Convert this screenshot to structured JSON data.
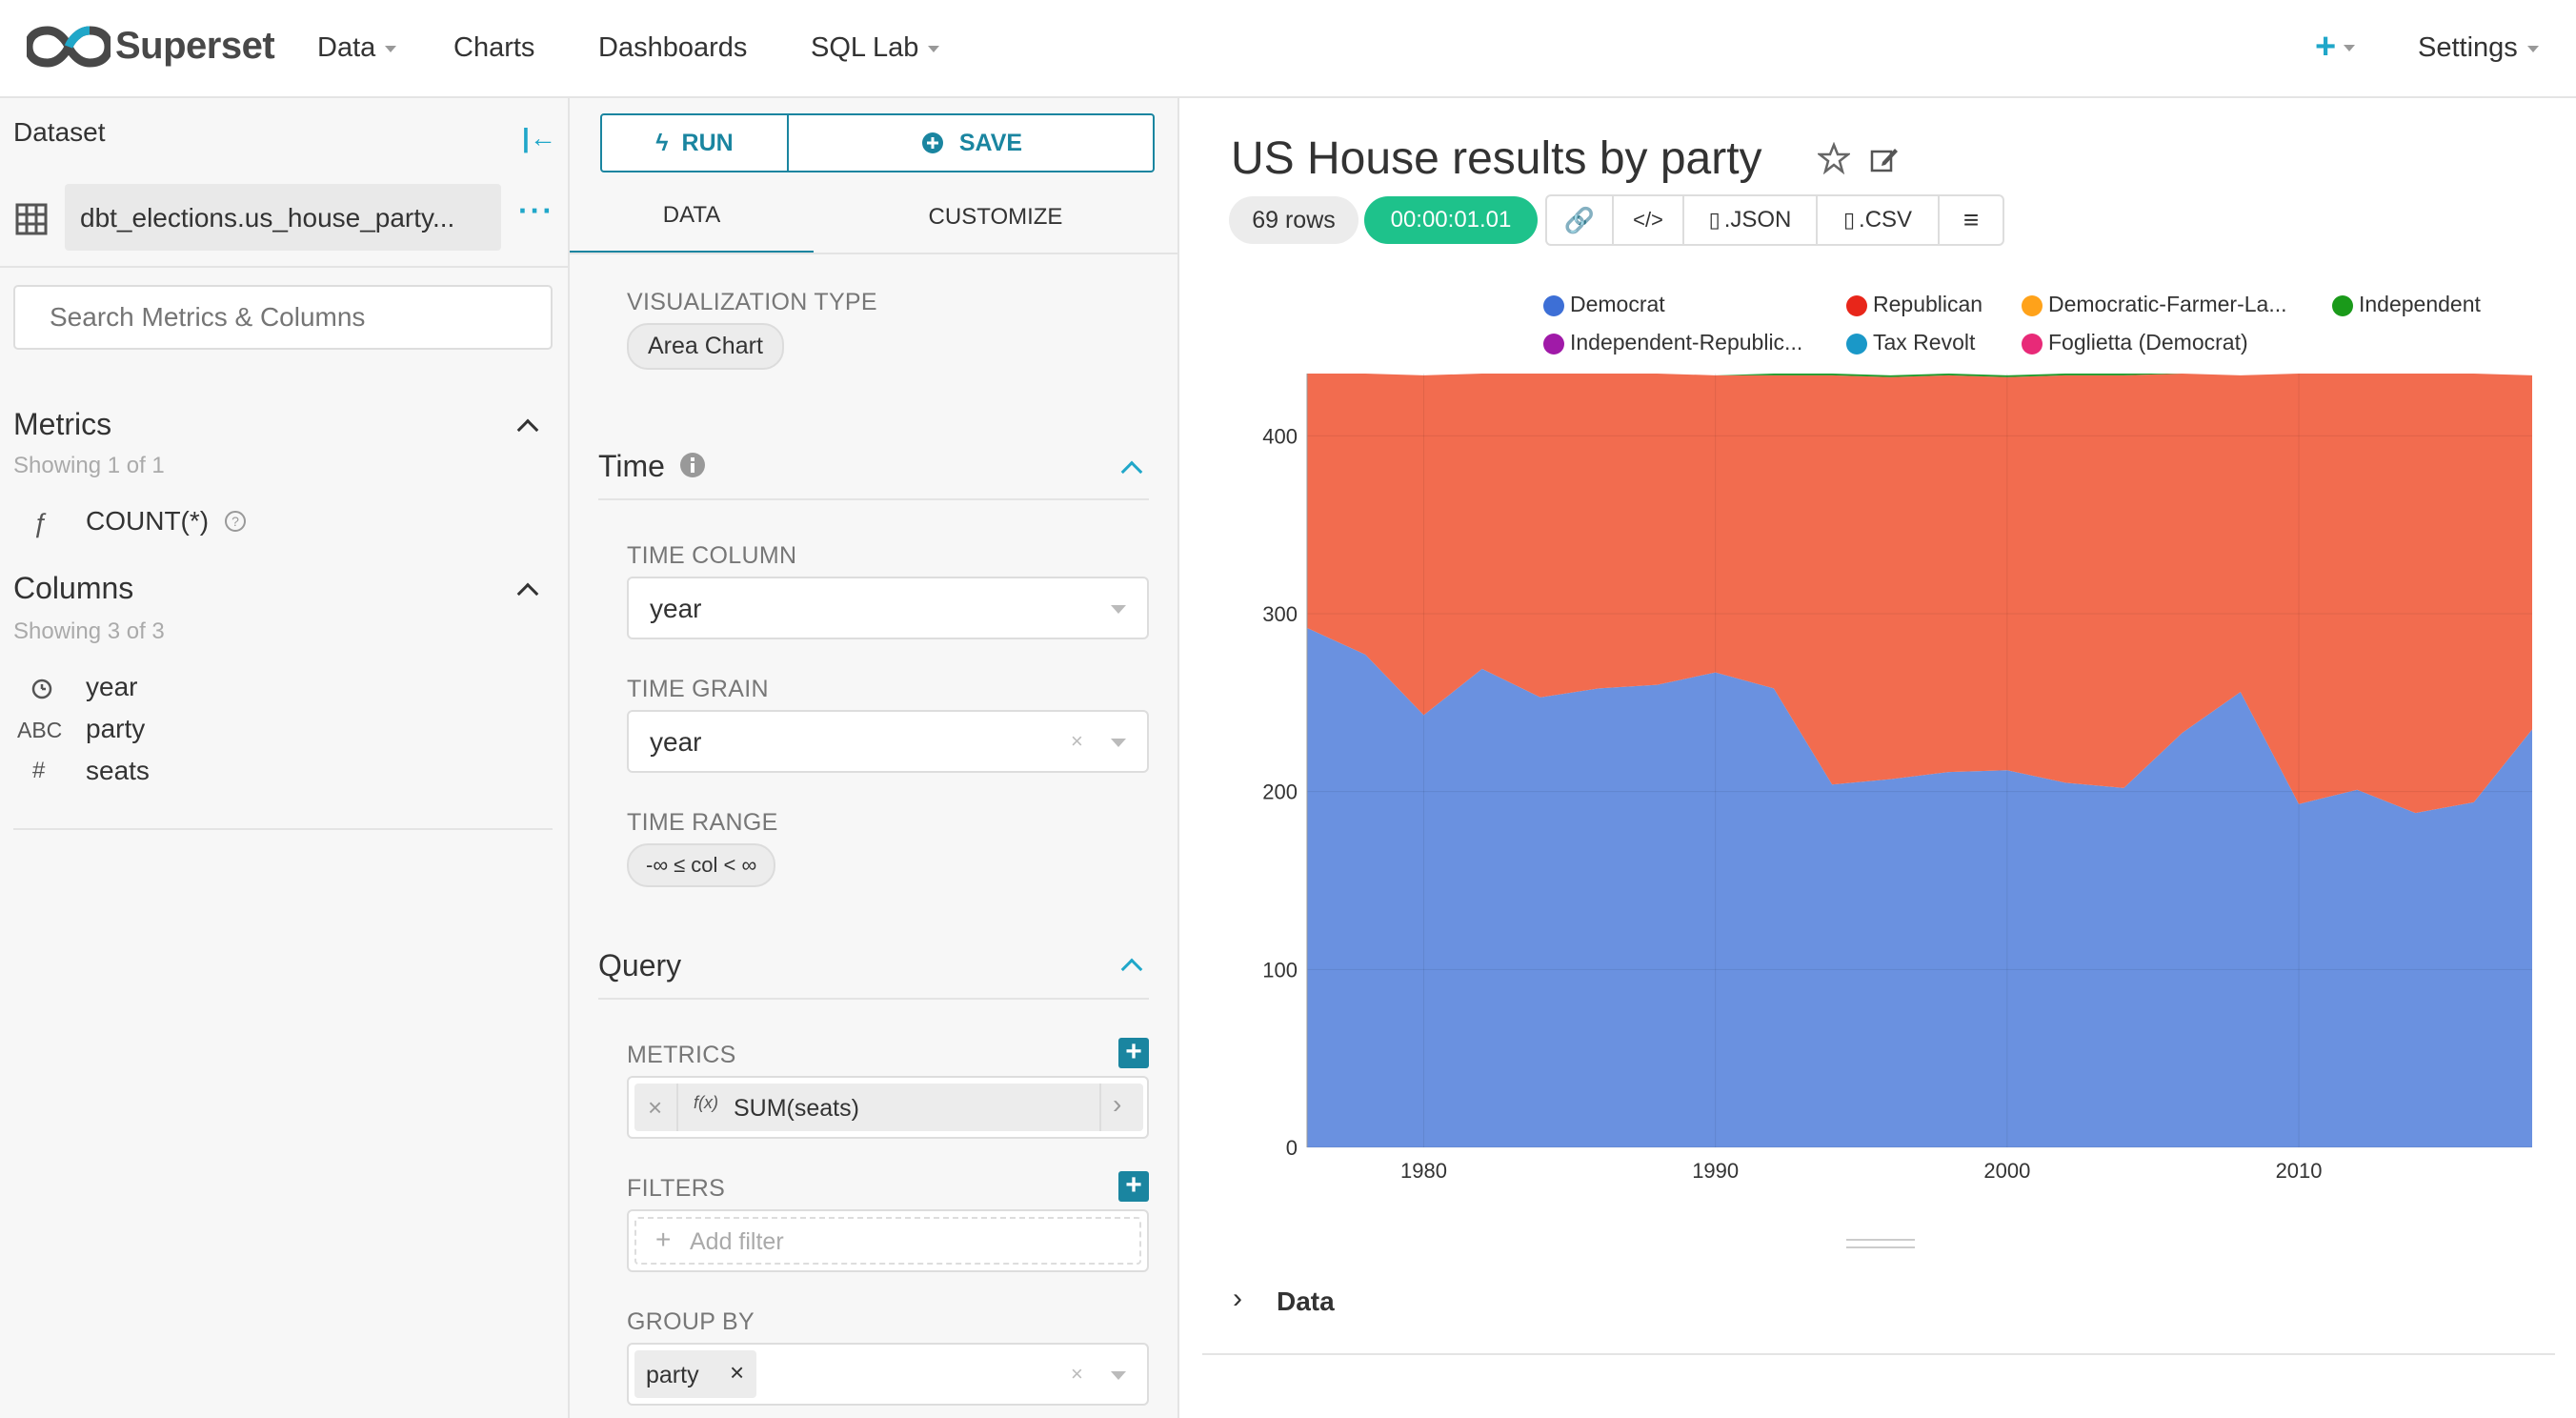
{
  "nav": {
    "brand": "Superset",
    "items": [
      "Data",
      "Charts",
      "Dashboards",
      "SQL Lab"
    ],
    "plus": "+",
    "settings": "Settings"
  },
  "dataset": {
    "header": "Dataset",
    "name": "dbt_elections.us_house_party...",
    "search_placeholder": "Search Metrics & Columns",
    "metrics_title": "Metrics",
    "metrics_showing": "Showing 1 of 1",
    "metrics": [
      {
        "icon": "ƒ",
        "name": "COUNT(*)"
      }
    ],
    "columns_title": "Columns",
    "columns_showing": "Showing 3 of 3",
    "columns": [
      {
        "icon": "clock-icon",
        "type": "",
        "name": "year"
      },
      {
        "icon": "",
        "type": "ABC",
        "name": "party"
      },
      {
        "icon": "",
        "type": "#",
        "name": "seats"
      }
    ]
  },
  "explore": {
    "run_label": "RUN",
    "save_label": "SAVE",
    "tabs": [
      "DATA",
      "CUSTOMIZE"
    ],
    "viz_type_label": "VISUALIZATION TYPE",
    "viz_type": "Area Chart",
    "time_section": "Time",
    "time_column_label": "TIME COLUMN",
    "time_column": "year",
    "time_grain_label": "TIME GRAIN",
    "time_grain": "year",
    "time_range_label": "TIME RANGE",
    "time_range": "-∞ ≤ col < ∞",
    "query_section": "Query",
    "metrics_label": "METRICS",
    "metric_value": "SUM(seats)",
    "metric_fx": "f(x)",
    "filters_label": "FILTERS",
    "add_filter": "Add filter",
    "group_by_label": "GROUP BY",
    "group_by_value": "party"
  },
  "chart": {
    "title": "US House results by party",
    "rows": "69 rows",
    "timer": "00:00:01.01",
    "json_label": ".JSON",
    "csv_label": ".CSV",
    "data_label": "Data",
    "colors": {
      "Democrat": "#6a91e0",
      "Republican": "#f26c4f",
      "Democratic-Farmer-La...": "#ffb020",
      "Independent": "#1f9a2a",
      "Independent-Republic...": "#a020c0",
      "Tax Revolt": "#2aa0c8",
      "Foglietta (Democrat)": "#ee3f82"
    },
    "legend_dot_colors": [
      "#3d6fd6",
      "#e8261a",
      "#ffa21a",
      "#1a9a1a",
      "#a01aa8",
      "#1a98c8",
      "#e82a78"
    ]
  },
  "chart_data": {
    "type": "area",
    "stacked": true,
    "x": [
      1976,
      1978,
      1980,
      1982,
      1984,
      1986,
      1988,
      1990,
      1992,
      1994,
      1996,
      1998,
      2000,
      2002,
      2004,
      2006,
      2008,
      2010,
      2012,
      2014,
      2016,
      2018
    ],
    "series": [
      {
        "name": "Democrat",
        "values": [
          292,
          277,
          243,
          269,
          253,
          258,
          260,
          267,
          258,
          204,
          207,
          211,
          212,
          205,
          202,
          233,
          256,
          193,
          201,
          188,
          194,
          235
        ]
      },
      {
        "name": "Republican",
        "values": [
          143,
          158,
          191,
          166,
          182,
          177,
          175,
          167,
          176,
          230,
          226,
          223,
          221,
          229,
          232,
          202,
          178,
          242,
          234,
          247,
          241,
          199
        ]
      },
      {
        "name": "Democratic-Farmer-La...",
        "values": [
          0,
          0,
          0,
          0,
          0,
          0,
          0,
          0,
          0,
          0,
          0,
          0,
          0,
          0,
          0,
          0,
          0,
          0,
          0,
          0,
          0,
          0
        ]
      },
      {
        "name": "Independent",
        "values": [
          0,
          0,
          0,
          0,
          0,
          0,
          0,
          0,
          1,
          1,
          1,
          1,
          1,
          1,
          1,
          0,
          0,
          0,
          0,
          0,
          0,
          0
        ]
      },
      {
        "name": "Independent-Republic...",
        "values": [
          0,
          0,
          0,
          0,
          0,
          0,
          0,
          0,
          0,
          0,
          0,
          0,
          0,
          0,
          0,
          0,
          0,
          0,
          0,
          0,
          0,
          0
        ]
      },
      {
        "name": "Tax Revolt",
        "values": [
          0,
          0,
          0,
          0,
          0,
          0,
          0,
          0,
          0,
          0,
          0,
          0,
          0,
          0,
          0,
          0,
          0,
          0,
          0,
          0,
          0,
          0
        ]
      },
      {
        "name": "Foglietta (Democrat)",
        "values": [
          0,
          0,
          0,
          0,
          0,
          0,
          0,
          0,
          0,
          0,
          0,
          0,
          0,
          0,
          0,
          0,
          0,
          0,
          0,
          0,
          0,
          0
        ]
      }
    ],
    "xticks": [
      1980,
      1990,
      2000,
      2010
    ],
    "yticks": [
      0,
      100,
      200,
      300,
      400
    ],
    "xlim": [
      1976,
      2018
    ],
    "ylim": [
      0,
      435
    ],
    "grid": true,
    "legend": "top"
  }
}
